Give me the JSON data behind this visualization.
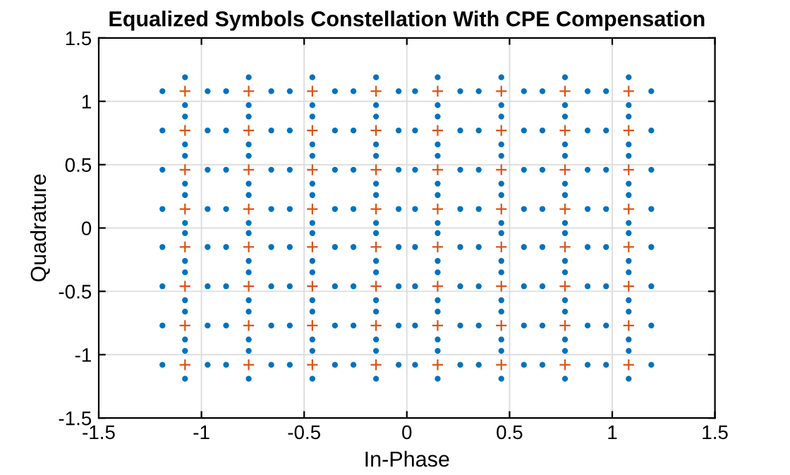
{
  "chart_data": {
    "type": "scatter",
    "title": "Equalized Symbols Constellation With CPE Compensation",
    "xlabel": "In-Phase",
    "ylabel": "Quadrature",
    "xlim": [
      -1.5,
      1.5
    ],
    "ylim": [
      -1.5,
      1.5
    ],
    "xticks": [
      -1.5,
      -1,
      -0.5,
      0,
      0.5,
      1,
      1.5
    ],
    "yticks": [
      -1.5,
      -1,
      -0.5,
      0,
      0.5,
      1,
      1.5
    ],
    "grid": true,
    "series": [
      {
        "color": "#0072bd",
        "marker": "circle",
        "x": [
          -1.19,
          -0.97,
          -1.08,
          -1.08,
          -0.88,
          -0.66,
          -0.77,
          -0.77,
          -0.57,
          -0.35,
          -0.46,
          -0.46,
          -0.26,
          -0.04,
          -0.15,
          -0.15,
          0.04,
          0.26,
          0.15,
          0.15,
          0.35,
          0.57,
          0.46,
          0.46,
          0.66,
          0.88,
          0.77,
          0.77,
          0.97,
          1.19,
          1.08,
          1.08,
          -1.19,
          -0.97,
          -1.08,
          -1.08,
          -0.88,
          -0.66,
          -0.77,
          -0.77,
          -0.57,
          -0.35,
          -0.46,
          -0.46,
          -0.26,
          -0.04,
          -0.15,
          -0.15,
          0.04,
          0.26,
          0.15,
          0.15,
          0.35,
          0.57,
          0.46,
          0.46,
          0.66,
          0.88,
          0.77,
          0.77,
          0.97,
          1.19,
          1.08,
          1.08,
          -1.19,
          -0.97,
          -1.08,
          -1.08,
          -0.88,
          -0.66,
          -0.77,
          -0.77,
          -0.57,
          -0.35,
          -0.46,
          -0.46,
          -0.26,
          -0.04,
          -0.15,
          -0.15,
          0.04,
          0.26,
          0.15,
          0.15,
          0.35,
          0.57,
          0.46,
          0.46,
          0.66,
          0.88,
          0.77,
          0.77,
          0.97,
          1.19,
          1.08,
          1.08,
          -1.19,
          -0.97,
          -1.08,
          -1.08,
          -0.88,
          -0.66,
          -0.77,
          -0.77,
          -0.57,
          -0.35,
          -0.46,
          -0.46,
          -0.26,
          -0.04,
          -0.15,
          -0.15,
          0.04,
          0.26,
          0.15,
          0.15,
          0.35,
          0.57,
          0.46,
          0.46,
          0.66,
          0.88,
          0.77,
          0.77,
          0.97,
          1.19,
          1.08,
          1.08,
          -1.19,
          -0.97,
          -1.08,
          -1.08,
          -0.88,
          -0.66,
          -0.77,
          -0.77,
          -0.57,
          -0.35,
          -0.46,
          -0.46,
          -0.26,
          -0.04,
          -0.15,
          -0.15,
          0.04,
          0.26,
          0.15,
          0.15,
          0.35,
          0.57,
          0.46,
          0.46,
          0.66,
          0.88,
          0.77,
          0.77,
          0.97,
          1.19,
          1.08,
          1.08,
          -1.19,
          -0.97,
          -1.08,
          -1.08,
          -0.88,
          -0.66,
          -0.77,
          -0.77,
          -0.57,
          -0.35,
          -0.46,
          -0.46,
          -0.26,
          -0.04,
          -0.15,
          -0.15,
          0.04,
          0.26,
          0.15,
          0.15,
          0.35,
          0.57,
          0.46,
          0.46,
          0.66,
          0.88,
          0.77,
          0.77,
          0.97,
          1.19,
          1.08,
          1.08,
          -1.19,
          -0.97,
          -1.08,
          -1.08,
          -0.88,
          -0.66,
          -0.77,
          -0.77,
          -0.57,
          -0.35,
          -0.46,
          -0.46,
          -0.26,
          -0.04,
          -0.15,
          -0.15,
          0.04,
          0.26,
          0.15,
          0.15,
          0.35,
          0.57,
          0.46,
          0.46,
          0.66,
          0.88,
          0.77,
          0.77,
          0.97,
          1.19,
          1.08,
          1.08,
          -1.19,
          -0.97,
          -1.08,
          -1.08,
          -0.88,
          -0.66,
          -0.77,
          -0.77,
          -0.57,
          -0.35,
          -0.46,
          -0.46,
          -0.26,
          -0.04,
          -0.15,
          -0.15,
          0.04,
          0.26,
          0.15,
          0.15,
          0.35,
          0.57,
          0.46,
          0.46,
          0.66,
          0.88,
          0.77,
          0.77,
          0.97,
          1.19,
          1.08,
          1.08
        ],
        "values": [
          1.08,
          1.08,
          0.97,
          1.19,
          1.08,
          1.08,
          0.97,
          1.19,
          1.08,
          1.08,
          0.97,
          1.19,
          1.08,
          1.08,
          0.97,
          1.19,
          1.08,
          1.08,
          0.97,
          1.19,
          1.08,
          1.08,
          0.97,
          1.19,
          1.08,
          1.08,
          0.97,
          1.19,
          1.08,
          1.08,
          0.97,
          1.19,
          0.77,
          0.77,
          0.66,
          0.88,
          0.77,
          0.77,
          0.66,
          0.88,
          0.77,
          0.77,
          0.66,
          0.88,
          0.77,
          0.77,
          0.66,
          0.88,
          0.77,
          0.77,
          0.66,
          0.88,
          0.77,
          0.77,
          0.66,
          0.88,
          0.77,
          0.77,
          0.66,
          0.88,
          0.77,
          0.77,
          0.66,
          0.88,
          0.46,
          0.46,
          0.35,
          0.57,
          0.46,
          0.46,
          0.35,
          0.57,
          0.46,
          0.46,
          0.35,
          0.57,
          0.46,
          0.46,
          0.35,
          0.57,
          0.46,
          0.46,
          0.35,
          0.57,
          0.46,
          0.46,
          0.35,
          0.57,
          0.46,
          0.46,
          0.35,
          0.57,
          0.46,
          0.46,
          0.35,
          0.57,
          0.15,
          0.15,
          0.04,
          0.26,
          0.15,
          0.15,
          0.04,
          0.26,
          0.15,
          0.15,
          0.04,
          0.26,
          0.15,
          0.15,
          0.04,
          0.26,
          0.15,
          0.15,
          0.04,
          0.26,
          0.15,
          0.15,
          0.04,
          0.26,
          0.15,
          0.15,
          0.04,
          0.26,
          0.15,
          0.15,
          0.04,
          0.26,
          -0.15,
          -0.15,
          -0.26,
          -0.04,
          -0.15,
          -0.15,
          -0.26,
          -0.04,
          -0.15,
          -0.15,
          -0.26,
          -0.04,
          -0.15,
          -0.15,
          -0.26,
          -0.04,
          -0.15,
          -0.15,
          -0.26,
          -0.04,
          -0.15,
          -0.15,
          -0.26,
          -0.04,
          -0.15,
          -0.15,
          -0.26,
          -0.04,
          -0.15,
          -0.15,
          -0.26,
          -0.04,
          -0.46,
          -0.46,
          -0.57,
          -0.35,
          -0.46,
          -0.46,
          -0.57,
          -0.35,
          -0.46,
          -0.46,
          -0.57,
          -0.35,
          -0.46,
          -0.46,
          -0.57,
          -0.35,
          -0.46,
          -0.46,
          -0.57,
          -0.35,
          -0.46,
          -0.46,
          -0.57,
          -0.35,
          -0.46,
          -0.46,
          -0.57,
          -0.35,
          -0.46,
          -0.46,
          -0.57,
          -0.35,
          -0.77,
          -0.77,
          -0.88,
          -0.66,
          -0.77,
          -0.77,
          -0.88,
          -0.66,
          -0.77,
          -0.77,
          -0.88,
          -0.66,
          -0.77,
          -0.77,
          -0.88,
          -0.66,
          -0.77,
          -0.77,
          -0.88,
          -0.66,
          -0.77,
          -0.77,
          -0.88,
          -0.66,
          -0.77,
          -0.77,
          -0.88,
          -0.66,
          -0.77,
          -0.77,
          -0.88,
          -0.66,
          -1.08,
          -1.08,
          -1.19,
          -0.97,
          -1.08,
          -1.08,
          -1.19,
          -0.97,
          -1.08,
          -1.08,
          -1.19,
          -0.97,
          -1.08,
          -1.08,
          -1.19,
          -0.97,
          -1.08,
          -1.08,
          -1.19,
          -0.97,
          -1.08,
          -1.08,
          -1.19,
          -0.97,
          -1.08,
          -1.08,
          -1.19,
          -0.97,
          -1.08,
          -1.08,
          -1.19,
          -0.97
        ]
      },
      {
        "color": "#d95319",
        "marker": "cross",
        "x": [
          -1.08,
          -0.77,
          -0.46,
          -0.15,
          0.15,
          0.46,
          0.77,
          1.08,
          -1.08,
          -0.77,
          -0.46,
          -0.15,
          0.15,
          0.46,
          0.77,
          1.08,
          -1.08,
          -0.77,
          -0.46,
          -0.15,
          0.15,
          0.46,
          0.77,
          1.08,
          -1.08,
          -0.77,
          -0.46,
          -0.15,
          0.15,
          0.46,
          0.77,
          1.08,
          -1.08,
          -0.77,
          -0.46,
          -0.15,
          0.15,
          0.46,
          0.77,
          1.08,
          -1.08,
          -0.77,
          -0.46,
          -0.15,
          0.15,
          0.46,
          0.77,
          1.08,
          -1.08,
          -0.77,
          -0.46,
          -0.15,
          0.15,
          0.46,
          0.77,
          1.08,
          -1.08,
          -0.77,
          -0.46,
          -0.15,
          0.15,
          0.46,
          0.77,
          1.08
        ],
        "values": [
          1.08,
          1.08,
          1.08,
          1.08,
          1.08,
          1.08,
          1.08,
          1.08,
          0.77,
          0.77,
          0.77,
          0.77,
          0.77,
          0.77,
          0.77,
          0.77,
          0.46,
          0.46,
          0.46,
          0.46,
          0.46,
          0.46,
          0.46,
          0.46,
          0.15,
          0.15,
          0.15,
          0.15,
          0.15,
          0.15,
          0.15,
          0.15,
          -0.15,
          -0.15,
          -0.15,
          -0.15,
          -0.15,
          -0.15,
          -0.15,
          -0.15,
          -0.46,
          -0.46,
          -0.46,
          -0.46,
          -0.46,
          -0.46,
          -0.46,
          -0.46,
          -0.77,
          -0.77,
          -0.77,
          -0.77,
          -0.77,
          -0.77,
          -0.77,
          -0.77,
          -1.08,
          -1.08,
          -1.08,
          -1.08,
          -1.08,
          -1.08,
          -1.08,
          -1.08
        ]
      }
    ]
  }
}
